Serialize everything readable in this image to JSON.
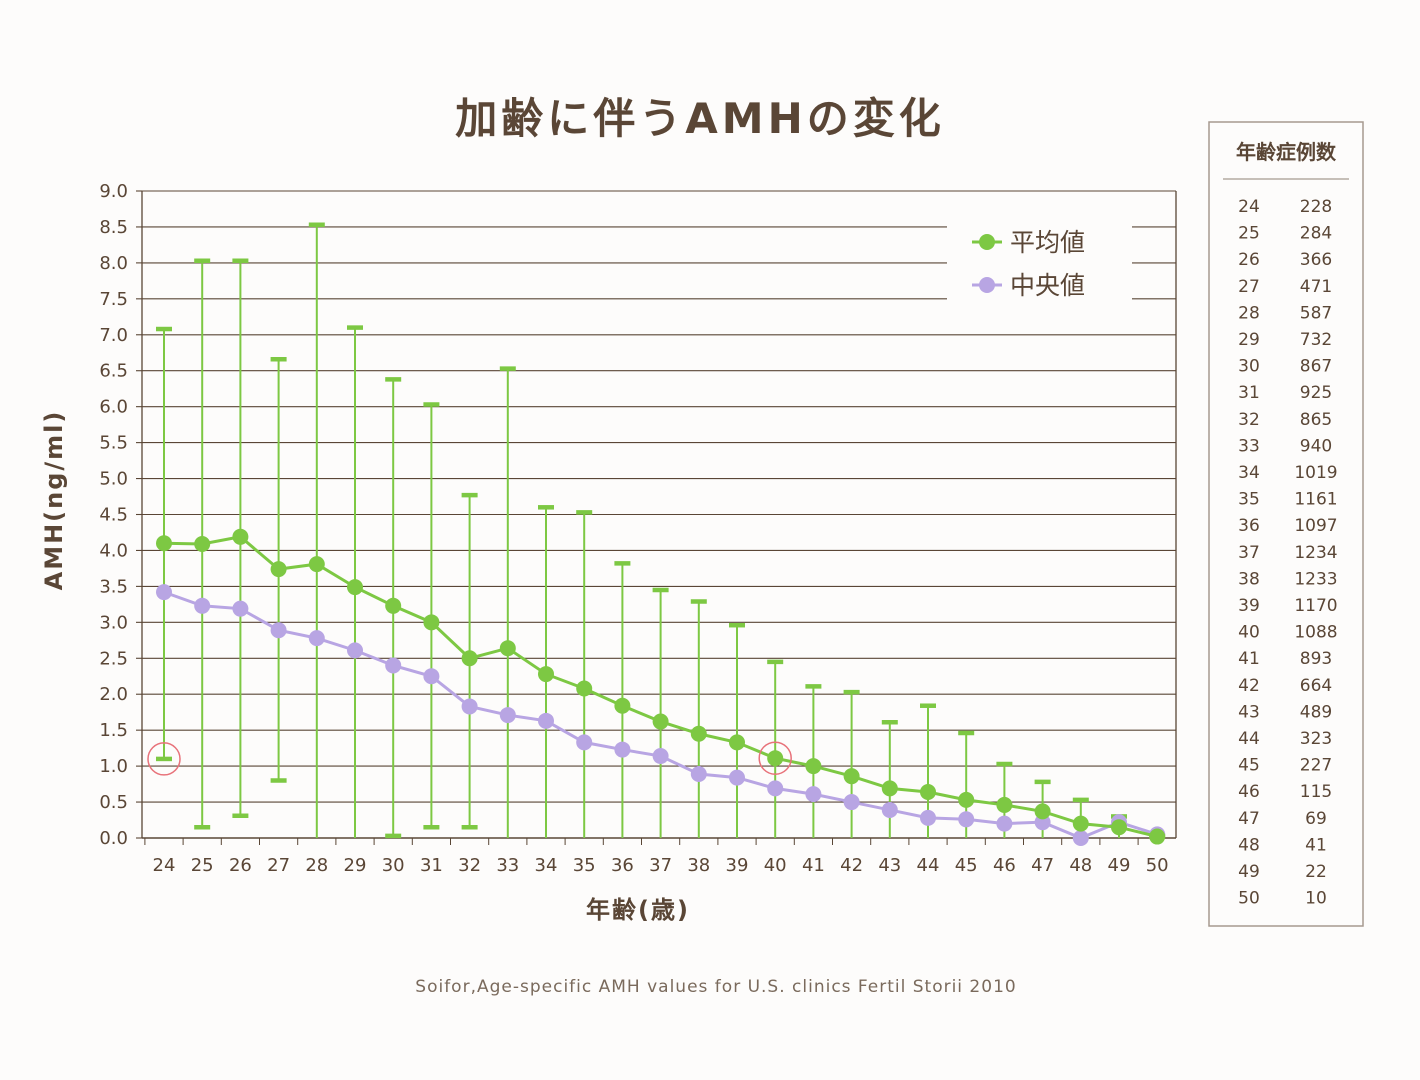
{
  "title": "加齢に伴うAMHの変化",
  "source": "Soifor,Age-specific AMH values for U.S. clinics Fertil Storii 2010",
  "colors": {
    "mean": "#7dc843",
    "median": "#b8a5e3",
    "grid": "#5a4636",
    "text": "#5a4636",
    "highlight": "#e8727a"
  },
  "chart_data": {
    "type": "line",
    "title": "加齢に伴うAMHの変化",
    "xlabel": "年齢(歳)",
    "ylabel": "AMH(ng/ml)",
    "ylim": [
      0,
      9
    ],
    "yticks": [
      "0.0",
      "0.5",
      "1.0",
      "1.5",
      "2.0",
      "2.5",
      "3.0",
      "3.5",
      "4.0",
      "4.5",
      "5.0",
      "5.5",
      "6.0",
      "6.5",
      "7.0",
      "7.5",
      "8.0",
      "8.5",
      "9.0"
    ],
    "x": [
      "24",
      "25",
      "26",
      "27",
      "28",
      "29",
      "30",
      "31",
      "32",
      "33",
      "34",
      "35",
      "36",
      "37",
      "38",
      "39",
      "40",
      "41",
      "42",
      "43",
      "44",
      "45",
      "46",
      "47",
      "48",
      "49",
      "50"
    ],
    "grid": "horizontal",
    "legend_position": "top-right",
    "series": [
      {
        "name": "平均値",
        "values": [
          4.1,
          4.09,
          4.19,
          3.74,
          3.81,
          3.49,
          3.23,
          3.0,
          2.5,
          2.64,
          2.28,
          2.08,
          1.84,
          1.62,
          1.45,
          1.33,
          1.11,
          1.0,
          0.86,
          0.69,
          0.64,
          0.53,
          0.46,
          0.37,
          0.2,
          0.15,
          0.02
        ],
        "error_low": [
          1.1,
          0.15,
          0.31,
          0.8,
          0.0,
          0.0,
          0.03,
          0.15,
          0.15,
          0.0,
          0.0,
          0.0,
          0.0,
          0.0,
          0.0,
          0.0,
          0.0,
          0.0,
          0.0,
          0.0,
          0.0,
          0.0,
          0.0,
          0.0,
          0.0,
          0.0,
          0.0
        ],
        "error_high": [
          7.08,
          8.03,
          8.03,
          6.66,
          8.53,
          7.1,
          6.38,
          6.03,
          4.77,
          6.53,
          4.6,
          4.53,
          3.82,
          3.45,
          3.29,
          2.96,
          2.45,
          2.11,
          2.03,
          1.61,
          1.84,
          1.46,
          1.03,
          0.78,
          0.53,
          0.3,
          0.03
        ]
      },
      {
        "name": "中央値",
        "values": [
          3.42,
          3.23,
          3.19,
          2.89,
          2.78,
          2.61,
          2.4,
          2.25,
          1.83,
          1.71,
          1.63,
          1.33,
          1.23,
          1.14,
          0.89,
          0.84,
          0.69,
          0.61,
          0.5,
          0.39,
          0.28,
          0.26,
          0.2,
          0.22,
          0.0,
          0.22,
          0.05
        ]
      }
    ],
    "annotations": [
      {
        "type": "circle",
        "x": "24",
        "y": 1.1
      },
      {
        "type": "circle",
        "x": "40",
        "y": 1.11
      }
    ]
  },
  "case_table": {
    "header": "年齢症例数",
    "rows": [
      [
        "24",
        "228"
      ],
      [
        "25",
        "284"
      ],
      [
        "26",
        "366"
      ],
      [
        "27",
        "471"
      ],
      [
        "28",
        "587"
      ],
      [
        "29",
        "732"
      ],
      [
        "30",
        "867"
      ],
      [
        "31",
        "925"
      ],
      [
        "32",
        "865"
      ],
      [
        "33",
        "940"
      ],
      [
        "34",
        "1019"
      ],
      [
        "35",
        "1161"
      ],
      [
        "36",
        "1097"
      ],
      [
        "37",
        "1234"
      ],
      [
        "38",
        "1233"
      ],
      [
        "39",
        "1170"
      ],
      [
        "40",
        "1088"
      ],
      [
        "41",
        "893"
      ],
      [
        "42",
        "664"
      ],
      [
        "43",
        "489"
      ],
      [
        "44",
        "323"
      ],
      [
        "45",
        "227"
      ],
      [
        "46",
        "115"
      ],
      [
        "47",
        "69"
      ],
      [
        "48",
        "41"
      ],
      [
        "49",
        "22"
      ],
      [
        "50",
        "10"
      ]
    ]
  }
}
